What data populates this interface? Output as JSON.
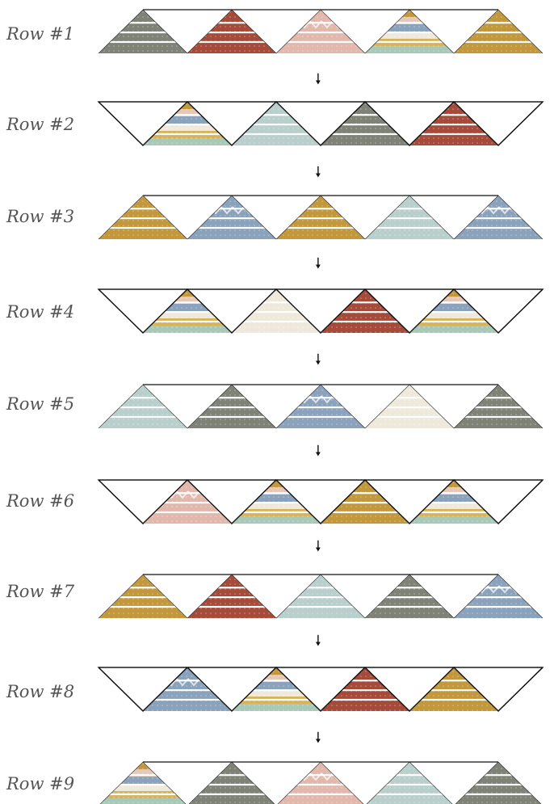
{
  "rows": [
    {
      "label": "Row #1",
      "arrow": "🠗"
    },
    {
      "label": "Row #2",
      "arrow": "🠗"
    },
    {
      "label": "Row #3",
      "arrow": "🠗"
    },
    {
      "label": "Row #4",
      "arrow": "🠗"
    },
    {
      "label": "Row #5",
      "arrow": "🠗"
    },
    {
      "label": "Row #6",
      "arrow": "🠗"
    },
    {
      "label": "Row #7",
      "arrow": "🠗"
    },
    {
      "label": "Row #8",
      "arrow": "🠗"
    },
    {
      "label": "Row #9",
      "arrow": ""
    }
  ],
  "fabrics": {
    "sage": "#7f8277",
    "rust": "#a64b3a",
    "blush": "#e2b8ad",
    "mustard": "#c3973c",
    "slate-blue": "#8aa2bc",
    "mint": "#b8cfcb",
    "cream": "#efe9dc",
    "navy": "#2b3046",
    "multicolor": "#d8c27a"
  },
  "row_fabrics": [
    [
      "sage",
      "rust",
      "blush",
      "multicolor",
      "mustard"
    ],
    [
      "multicolor",
      "mint",
      "sage",
      "rust"
    ],
    [
      "mustard",
      "slate-blue",
      "mustard",
      "mint",
      "slate-blue"
    ],
    [
      "multicolor",
      "cream",
      "rust",
      "multicolor"
    ],
    [
      "mint",
      "sage",
      "slate-blue",
      "cream",
      "sage"
    ],
    [
      "blush",
      "multicolor",
      "mustard",
      "multicolor"
    ],
    [
      "mustard",
      "rust",
      "mint",
      "sage",
      "slate-blue"
    ],
    [
      "slate-blue",
      "multicolor",
      "rust",
      "mustard"
    ],
    [
      "multicolor",
      "sage",
      "blush",
      "mint",
      "sage"
    ]
  ],
  "row_layouts": [
    "up",
    "down",
    "up",
    "down",
    "up",
    "down",
    "up",
    "down",
    "up"
  ]
}
